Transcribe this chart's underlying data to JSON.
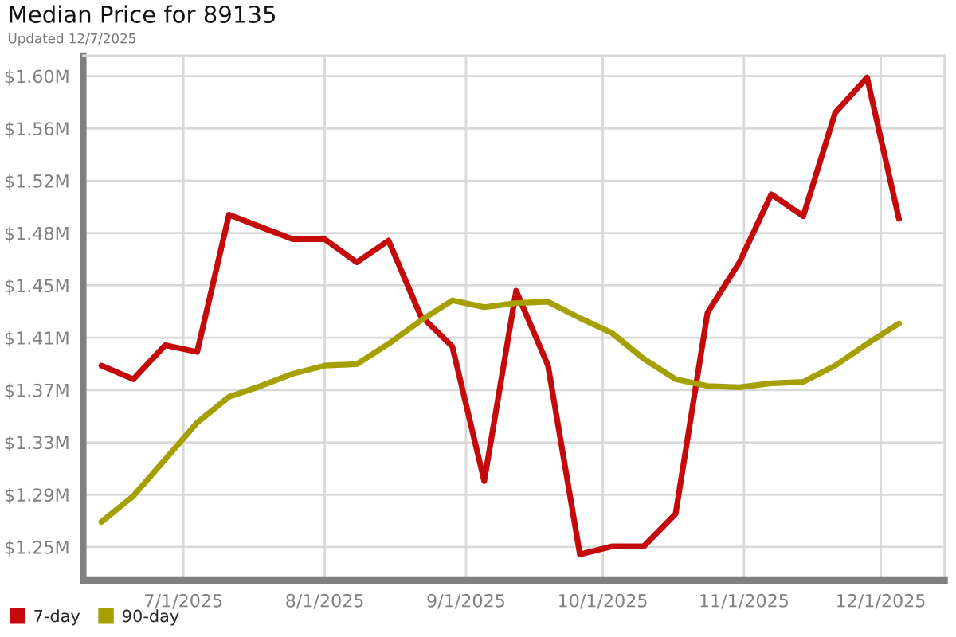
{
  "chart_data": {
    "type": "line",
    "title": "Median Price for 89135",
    "subtitle": "Updated 12/7/2025",
    "x": [
      "2025-06-13",
      "2025-06-20",
      "2025-06-27",
      "2025-07-04",
      "2025-07-11",
      "2025-07-18",
      "2025-07-25",
      "2025-08-01",
      "2025-08-08",
      "2025-08-15",
      "2025-08-22",
      "2025-08-29",
      "2025-09-05",
      "2025-09-12",
      "2025-09-19",
      "2025-09-26",
      "2025-10-03",
      "2025-10-10",
      "2025-10-17",
      "2025-10-24",
      "2025-10-31",
      "2025-11-07",
      "2025-11-14",
      "2025-11-21",
      "2025-11-28",
      "2025-12-05"
    ],
    "series": [
      {
        "name": "7-day",
        "color": "#c40a0a",
        "values": [
          1.386,
          1.376,
          1.401,
          1.396,
          1.497,
          1.488,
          1.479,
          1.479,
          1.462,
          1.478,
          1.423,
          1.4,
          1.301,
          1.441,
          1.386,
          1.247,
          1.253,
          1.253,
          1.277,
          1.425,
          1.462,
          1.512,
          1.496,
          1.572,
          1.598,
          1.494
        ]
      },
      {
        "name": "90-day",
        "color": "#a5a000",
        "values": [
          1.271,
          1.29,
          1.317,
          1.344,
          1.363,
          1.371,
          1.38,
          1.386,
          1.387,
          1.402,
          1.419,
          1.434,
          1.429,
          1.432,
          1.433,
          1.421,
          1.41,
          1.391,
          1.376,
          1.371,
          1.37,
          1.373,
          1.374,
          1.386,
          1.402,
          1.417
        ]
      }
    ],
    "xlim": [
      "2025-06-09",
      "2025-12-15"
    ],
    "xticks": [
      {
        "value": "2025-07-01",
        "label": "7/1/2025"
      },
      {
        "value": "2025-08-01",
        "label": "8/1/2025"
      },
      {
        "value": "2025-09-01",
        "label": "9/1/2025"
      },
      {
        "value": "2025-10-01",
        "label": "10/1/2025"
      },
      {
        "value": "2025-11-01",
        "label": "11/1/2025"
      },
      {
        "value": "2025-12-01",
        "label": "12/1/2025"
      }
    ],
    "ylim": [
      1.228,
      1.614
    ],
    "yticks": [
      {
        "value": 1.2525,
        "label": "$1.25M"
      },
      {
        "value": 1.291,
        "label": "$1.29M"
      },
      {
        "value": 1.3295,
        "label": "$1.33M"
      },
      {
        "value": 1.368,
        "label": "$1.37M"
      },
      {
        "value": 1.4065,
        "label": "$1.41M"
      },
      {
        "value": 1.445,
        "label": "$1.45M"
      },
      {
        "value": 1.4835,
        "label": "$1.48M"
      },
      {
        "value": 1.522,
        "label": "$1.52M"
      },
      {
        "value": 1.5605,
        "label": "$1.56M"
      },
      {
        "value": 1.599,
        "label": "$1.60M"
      }
    ],
    "grid": true,
    "legend": "bottom"
  }
}
